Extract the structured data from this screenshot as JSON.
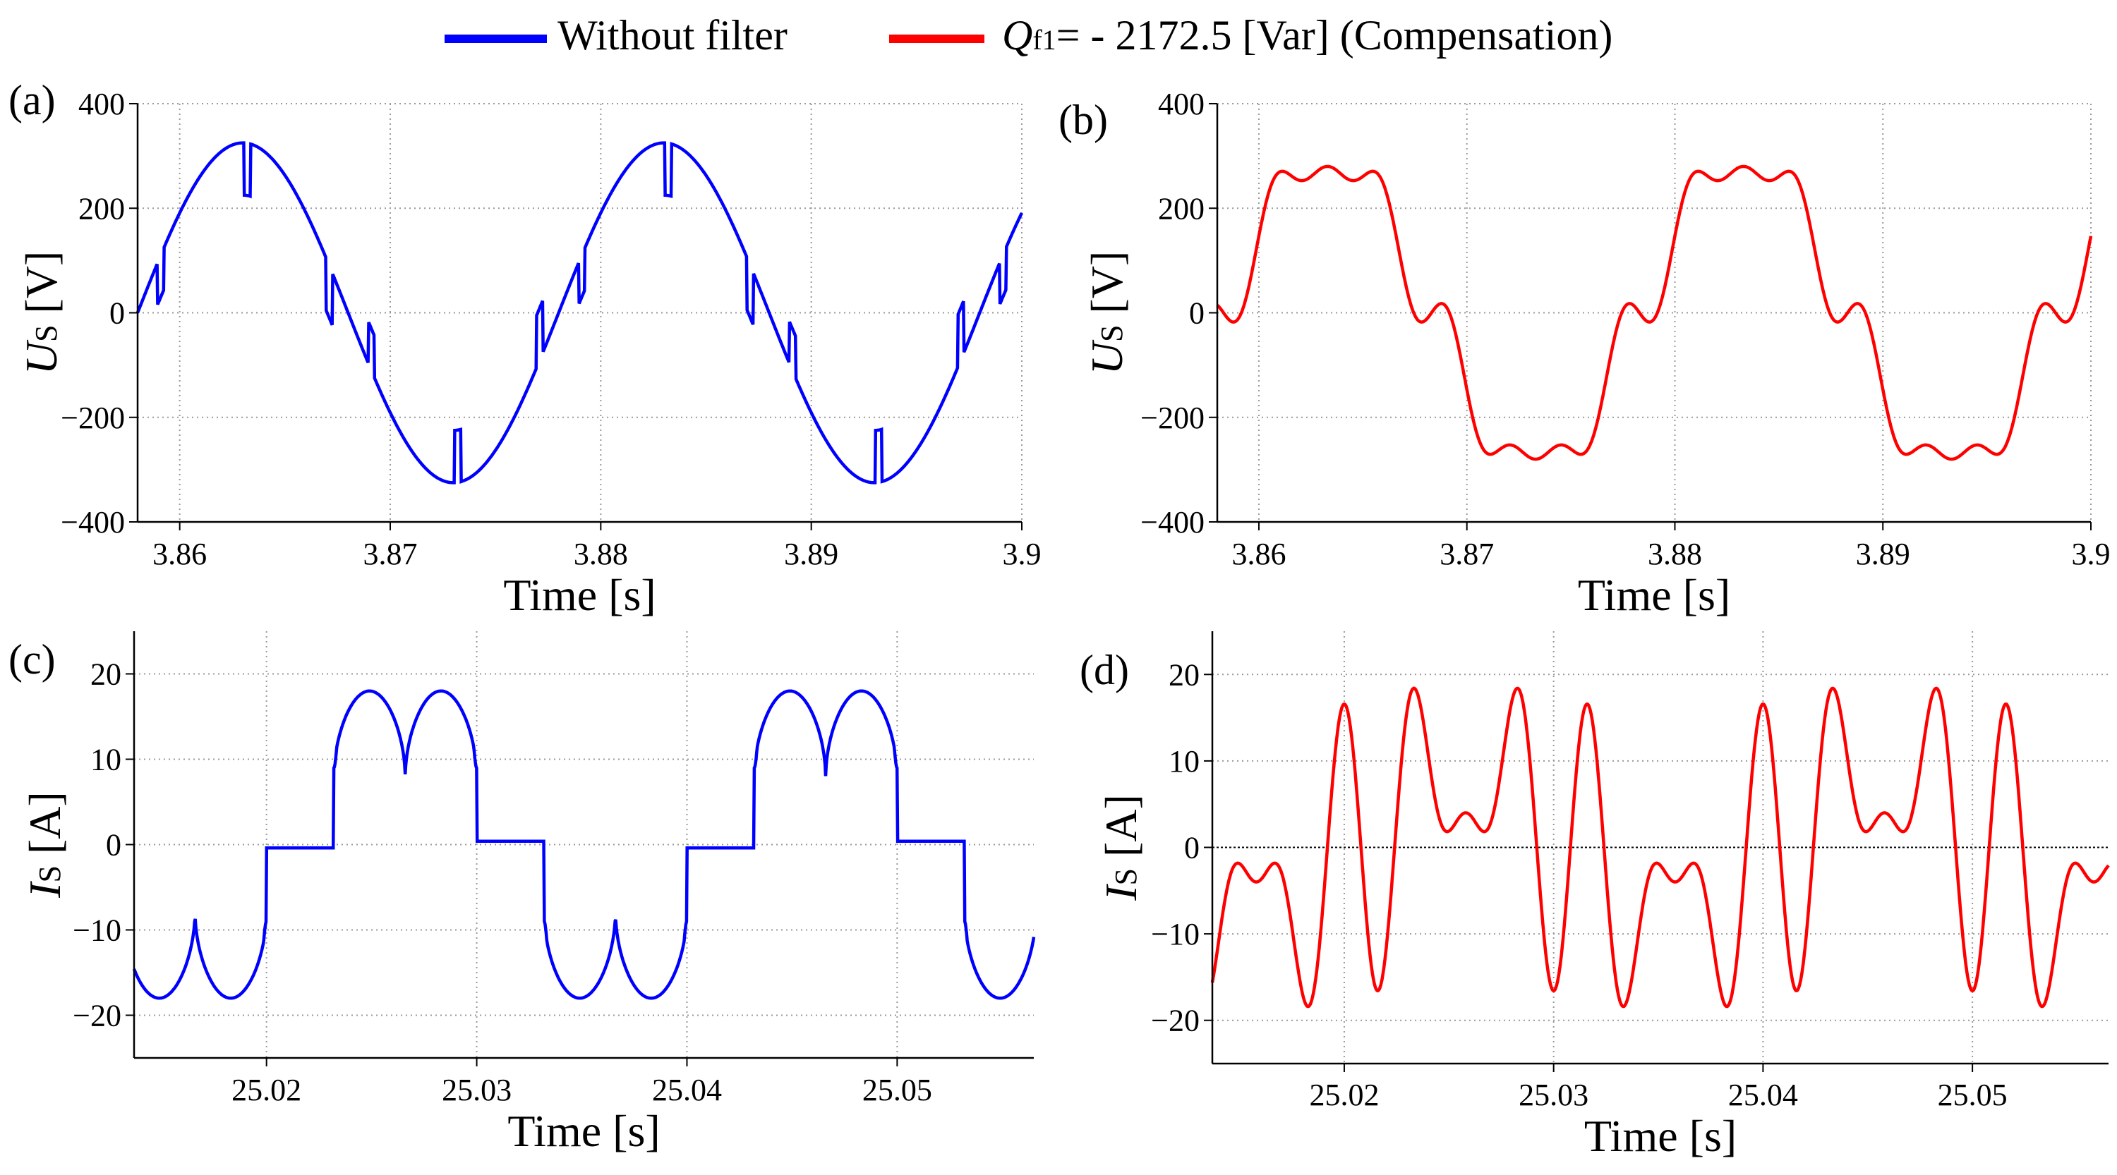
{
  "legend": {
    "items": [
      {
        "label": "Without filter",
        "color": "#0000ff"
      },
      {
        "label_italic": "Q",
        "label_sub": "f1",
        "label_rest": "= - 2172.5 [Var] (Compensation)",
        "color": "#ff0000"
      }
    ]
  },
  "colors": {
    "series_a": "#0000ff",
    "series_b": "#ff0000",
    "grid": "#999999",
    "zero_line": "#000000"
  },
  "chart_data": [
    {
      "id": "a",
      "type": "line",
      "panel_label": "(a)",
      "title": "",
      "xlabel": "Time [s]",
      "ylabel_italic": "U",
      "ylabel_sub": "S",
      "ylabel_unit": " [V]",
      "xlim": [
        3.858,
        3.9
      ],
      "ylim": [
        -400,
        400
      ],
      "xticks": [
        3.86,
        3.87,
        3.88,
        3.89,
        3.9
      ],
      "xtick_labels": [
        "3.86",
        "3.87",
        "3.88",
        "3.89",
        "3.9"
      ],
      "yticks": [
        -400,
        -200,
        0,
        200,
        400
      ],
      "ytick_labels": [
        "−400",
        "−200",
        "0",
        "200",
        "400"
      ],
      "grid": true,
      "series": [
        {
          "name": "Without filter",
          "color": "#0000ff",
          "amplitude": 325,
          "frequency_hz": 50,
          "notch_depth": 100
        }
      ]
    },
    {
      "id": "b",
      "type": "line",
      "panel_label": "(b)",
      "title": "",
      "xlabel": "Time [s]",
      "ylabel_italic": "U",
      "ylabel_sub": "S",
      "ylabel_unit": " [V]",
      "xlim": [
        3.858,
        3.9
      ],
      "ylim": [
        -400,
        400
      ],
      "xticks": [
        3.86,
        3.87,
        3.88,
        3.89,
        3.9
      ],
      "xtick_labels": [
        "3.86",
        "3.87",
        "3.88",
        "3.89",
        "3.9"
      ],
      "yticks": [
        -400,
        -200,
        0,
        200,
        400
      ],
      "ytick_labels": [
        "−400",
        "−200",
        "0",
        "200",
        "400"
      ],
      "grid": true,
      "series": [
        {
          "name": "Compensation",
          "color": "#ff0000",
          "fundamental": 290,
          "harmonics": [
            [
              5,
              45
            ],
            [
              7,
              35
            ]
          ]
        }
      ]
    },
    {
      "id": "c",
      "type": "line",
      "panel_label": "(c)",
      "title": "",
      "xlabel": "Time [s]",
      "ylabel_italic": "I",
      "ylabel_sub": "S",
      "ylabel_unit": " [A]",
      "xlim": [
        25.0137,
        25.0565
      ],
      "ylim": [
        -25,
        25
      ],
      "xticks": [
        25.02,
        25.03,
        25.04,
        25.05
      ],
      "xtick_labels": [
        "25.02",
        "25.03",
        "25.04",
        "25.05"
      ],
      "yticks": [
        -20,
        -10,
        0,
        10,
        20
      ],
      "ytick_labels": [
        "−20",
        "−10",
        "0",
        "10",
        "20"
      ],
      "grid": true,
      "series": [
        {
          "name": "Without filter",
          "color": "#0000ff",
          "peak": 18,
          "valley": 7.7
        }
      ]
    },
    {
      "id": "d",
      "type": "line",
      "panel_label": "(d)",
      "title": "",
      "xlabel": "Time [s]",
      "ylabel_italic": "I",
      "ylabel_sub": "S",
      "ylabel_unit": " [A]",
      "xlim": [
        25.0137,
        25.0565
      ],
      "ylim": [
        -25,
        25
      ],
      "xticks": [
        25.02,
        25.03,
        25.04,
        25.05
      ],
      "xtick_labels": [
        "25.02",
        "25.03",
        "25.04",
        "25.05"
      ],
      "yticks": [
        -20,
        -10,
        0,
        10,
        20
      ],
      "ytick_labels": [
        "−20",
        "−10",
        "0",
        "10",
        "20"
      ],
      "grid": true,
      "series": [
        {
          "name": "Compensation",
          "color": "#ff0000",
          "fundamental": 7,
          "harmonics": [
            [
              5,
              11
            ],
            [
              7,
              8
            ]
          ]
        }
      ]
    }
  ]
}
